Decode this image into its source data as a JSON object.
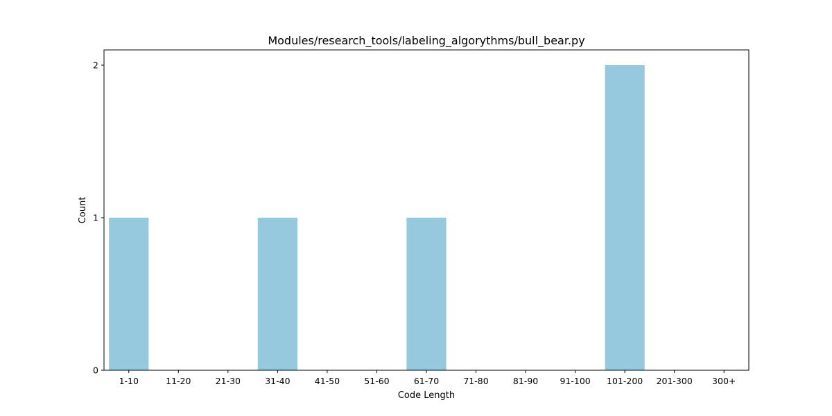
{
  "chart_data": {
    "type": "bar",
    "title": "Modules/research_tools/labeling_algorythms/bull_bear.py",
    "xlabel": "Code Length",
    "ylabel": "Count",
    "categories": [
      "1-10",
      "11-20",
      "21-30",
      "31-40",
      "41-50",
      "51-60",
      "61-70",
      "71-80",
      "81-90",
      "91-100",
      "101-200",
      "201-300",
      "300+"
    ],
    "values": [
      1,
      0,
      0,
      1,
      0,
      0,
      1,
      0,
      0,
      0,
      2,
      0,
      0
    ],
    "ylim": [
      0,
      2.1
    ],
    "yticks": [
      0,
      1,
      2
    ],
    "bar_color": "#96c9de",
    "grid": false,
    "legend": "none"
  }
}
